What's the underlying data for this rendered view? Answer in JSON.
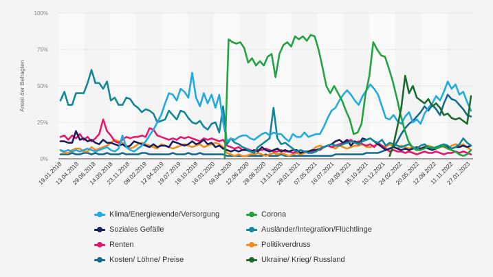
{
  "chart_data": {
    "type": "line",
    "title": "",
    "xlabel": "",
    "ylabel": "Anteil der Befragten",
    "ylim": [
      0,
      100
    ],
    "yticks": [
      "0%",
      "25%",
      "50%",
      "75%",
      "100%"
    ],
    "ytick_values": [
      0,
      25,
      50,
      75,
      100
    ],
    "grid": true,
    "legend_position": "bottom",
    "x_tick_labels": [
      "19.01.2018",
      "13.04.2018",
      "29.06.2018",
      "14.09.2018",
      "23.11.2018",
      "08.02.2019",
      "12.04.2019",
      "19.07.2019",
      "18.10.2019",
      "16.01.2020",
      "09.04.2020",
      "12.06.2020",
      "28.08.2020",
      "13.11.2020",
      "28.01.2021",
      "07.05.2021",
      "16.07.2021",
      "03.09.2021",
      "15.10.2021",
      "10.12.2021",
      "24.02.2022",
      "20.05.2022",
      "12.08.2022",
      "11.11.2022",
      "27.01.2023"
    ],
    "series": [
      {
        "name": "Klima/Energiewende/Versorgung",
        "color": "#21a9e1",
        "values": [
          6,
          5,
          6,
          5,
          6,
          5,
          6,
          7,
          6,
          5,
          6,
          7,
          8,
          6,
          5,
          7,
          16,
          8,
          6,
          5,
          7,
          9,
          12,
          16,
          20,
          25,
          30,
          38,
          45,
          44,
          40,
          48,
          46,
          42,
          59,
          42,
          36,
          45,
          38,
          44,
          35,
          44,
          25,
          12,
          14,
          13,
          15,
          16,
          16,
          14,
          13,
          15,
          17,
          18,
          16,
          18,
          17,
          17,
          14,
          12,
          17,
          15,
          15,
          18,
          15,
          16,
          17,
          17,
          22,
          28,
          33,
          35,
          40,
          44,
          47,
          44,
          40,
          37,
          43,
          47,
          51,
          48,
          44,
          36,
          28,
          27,
          30,
          26,
          24,
          29,
          32,
          25,
          27,
          24,
          31,
          35,
          38,
          43,
          40,
          46,
          53,
          48,
          51,
          44,
          46,
          39,
          33
        ]
      },
      {
        "name": "Corona",
        "color": "#23a33f",
        "values": [
          null,
          null,
          null,
          null,
          null,
          null,
          null,
          null,
          null,
          null,
          null,
          null,
          null,
          null,
          null,
          null,
          null,
          null,
          null,
          null,
          null,
          null,
          null,
          null,
          null,
          null,
          null,
          null,
          null,
          null,
          null,
          null,
          null,
          null,
          null,
          null,
          null,
          null,
          null,
          null,
          null,
          null,
          0,
          82,
          80,
          79,
          80,
          76,
          66,
          69,
          64,
          67,
          64,
          70,
          72,
          56,
          72,
          78,
          80,
          77,
          84,
          82,
          84,
          81,
          85,
          84,
          75,
          63,
          50,
          45,
          50,
          45,
          40,
          33,
          27,
          17,
          18,
          24,
          44,
          57,
          80,
          75,
          71,
          70,
          62,
          53,
          42,
          30,
          20,
          12,
          8,
          6,
          6,
          7,
          8,
          8,
          7,
          8,
          9,
          7,
          6,
          5,
          3,
          2,
          3,
          6
        ]
      },
      {
        "name": "Soziales Gefälle",
        "color": "#1a1f5e",
        "values": [
          12,
          12,
          11,
          11,
          19,
          13,
          14,
          12,
          13,
          11,
          10,
          13,
          11,
          11,
          10,
          9,
          10,
          8,
          9,
          12,
          11,
          10,
          9,
          8,
          10,
          8,
          9,
          9,
          8,
          12,
          11,
          10,
          9,
          10,
          12,
          10,
          11,
          13,
          10,
          11,
          8,
          9,
          7,
          6,
          5,
          6,
          5,
          6,
          6,
          5,
          6,
          5,
          8,
          6,
          5,
          6,
          7,
          5,
          6,
          5,
          6,
          6,
          4,
          5,
          5,
          6,
          6,
          7,
          8,
          9,
          10,
          12,
          13,
          11,
          13,
          9,
          12,
          10,
          14,
          13,
          14,
          12,
          10,
          8,
          6,
          7,
          8,
          7,
          6,
          7,
          6,
          7,
          8,
          7,
          8,
          7,
          6,
          7,
          8,
          9,
          8,
          7,
          8,
          8,
          9,
          8,
          9
        ]
      },
      {
        "name": "Ausländer/Integration/Flüchtlinge",
        "color": "#12879a",
        "values": [
          40,
          46,
          37,
          37,
          45,
          45,
          45,
          52,
          61,
          52,
          52,
          48,
          53,
          40,
          42,
          37,
          37,
          42,
          41,
          37,
          35,
          32,
          34,
          33,
          31,
          25,
          26,
          27,
          33,
          30,
          27,
          33,
          32,
          28,
          25,
          24,
          26,
          22,
          20,
          24,
          25,
          18,
          36,
          10,
          14,
          11,
          10,
          8,
          7,
          5,
          4,
          8,
          10,
          12,
          14,
          35,
          14,
          10,
          11,
          9,
          7,
          5,
          6,
          5,
          4,
          4,
          5,
          7,
          8,
          9,
          10,
          9,
          9,
          10,
          11,
          12,
          11,
          10,
          12,
          13,
          14,
          12,
          11,
          13,
          9,
          11,
          10,
          9,
          8,
          9,
          10,
          8,
          7,
          9,
          10,
          8,
          7,
          8,
          9,
          10,
          9,
          7,
          8,
          10,
          14,
          11,
          9
        ]
      },
      {
        "name": "Renten",
        "color": "#e5186f",
        "values": [
          15,
          16,
          13,
          16,
          14,
          17,
          13,
          15,
          12,
          14,
          17,
          27,
          19,
          16,
          12,
          11,
          13,
          15,
          14,
          15,
          15,
          16,
          15,
          21,
          20,
          16,
          15,
          14,
          13,
          14,
          13,
          15,
          14,
          15,
          14,
          13,
          12,
          14,
          13,
          14,
          13,
          12,
          13,
          9,
          8,
          7,
          8,
          6,
          7,
          6,
          5,
          6,
          6,
          7,
          6,
          5,
          5,
          6,
          5,
          5,
          4,
          5,
          6,
          5,
          4,
          5,
          6,
          6,
          8,
          9,
          8,
          9,
          10,
          11,
          12,
          13,
          11,
          12,
          10,
          9,
          10,
          8,
          11,
          9,
          7,
          5,
          6,
          5,
          5,
          4,
          5,
          4,
          3,
          4,
          5,
          4,
          4,
          5,
          4,
          3,
          4,
          4,
          5,
          4,
          5,
          4,
          3
        ]
      },
      {
        "name": "Politikverdruss",
        "color": "#f28c1d",
        "values": [
          6,
          4,
          4,
          6,
          7,
          7,
          5,
          5,
          8,
          6,
          7,
          8,
          9,
          11,
          13,
          12,
          11,
          9,
          7,
          8,
          10,
          11,
          10,
          9,
          8,
          7,
          10,
          9,
          8,
          7,
          8,
          9,
          10,
          9,
          8,
          9,
          10,
          8,
          9,
          10,
          11,
          10,
          8,
          4,
          3,
          2,
          3,
          2,
          2,
          3,
          3,
          4,
          3,
          2,
          3,
          4,
          3,
          4,
          3,
          2,
          3,
          4,
          3,
          4,
          5,
          6,
          8,
          9,
          8,
          9,
          8,
          7,
          9,
          8,
          7,
          8,
          9,
          9,
          10,
          8,
          8,
          9,
          10,
          9,
          8,
          10,
          8,
          7,
          9,
          8,
          7,
          8,
          7,
          6,
          8,
          9,
          8,
          7,
          9,
          8,
          7,
          9,
          10,
          9,
          10,
          8,
          6
        ]
      },
      {
        "name": "Kosten/ Löhne/ Preise",
        "color": "#17698f",
        "values": [
          3,
          3,
          3,
          4,
          3,
          3,
          4,
          4,
          3,
          4,
          3,
          3,
          4,
          3,
          3,
          3,
          4,
          3,
          3,
          3,
          3,
          4,
          4,
          3,
          3,
          3,
          3,
          3,
          3,
          4,
          3,
          3,
          3,
          4,
          3,
          3,
          4,
          3,
          3,
          3,
          3,
          3,
          3,
          2,
          2,
          2,
          2,
          2,
          2,
          2,
          2,
          2,
          2,
          3,
          2,
          2,
          2,
          3,
          2,
          2,
          2,
          2,
          2,
          2,
          2,
          2,
          2,
          2,
          2,
          2,
          2,
          3,
          3,
          3,
          3,
          3,
          3,
          3,
          3,
          4,
          4,
          4,
          4,
          5,
          6,
          7,
          8,
          12,
          17,
          21,
          24,
          26,
          29,
          32,
          36,
          33,
          37,
          34,
          30,
          38,
          44,
          41,
          40,
          37,
          34,
          30,
          29
        ]
      },
      {
        "name": "Ukraine/ Krieg/ Russland",
        "color": "#1a6a2e",
        "values": [
          null,
          null,
          null,
          null,
          null,
          null,
          null,
          null,
          null,
          null,
          null,
          null,
          null,
          null,
          null,
          null,
          null,
          null,
          null,
          null,
          null,
          null,
          null,
          null,
          null,
          null,
          null,
          null,
          null,
          null,
          null,
          null,
          null,
          null,
          null,
          null,
          null,
          null,
          null,
          null,
          null,
          null,
          null,
          null,
          null,
          null,
          null,
          null,
          null,
          null,
          null,
          null,
          null,
          null,
          null,
          null,
          null,
          null,
          null,
          null,
          null,
          null,
          null,
          null,
          null,
          null,
          null,
          null,
          null,
          null,
          null,
          null,
          null,
          null,
          null,
          null,
          null,
          null,
          null,
          null,
          null,
          null,
          null,
          null,
          null,
          2,
          10,
          22,
          35,
          57,
          45,
          50,
          42,
          40,
          38,
          41,
          36,
          38,
          35,
          30,
          31,
          28,
          27,
          28,
          26,
          24,
          43
        ]
      }
    ]
  }
}
